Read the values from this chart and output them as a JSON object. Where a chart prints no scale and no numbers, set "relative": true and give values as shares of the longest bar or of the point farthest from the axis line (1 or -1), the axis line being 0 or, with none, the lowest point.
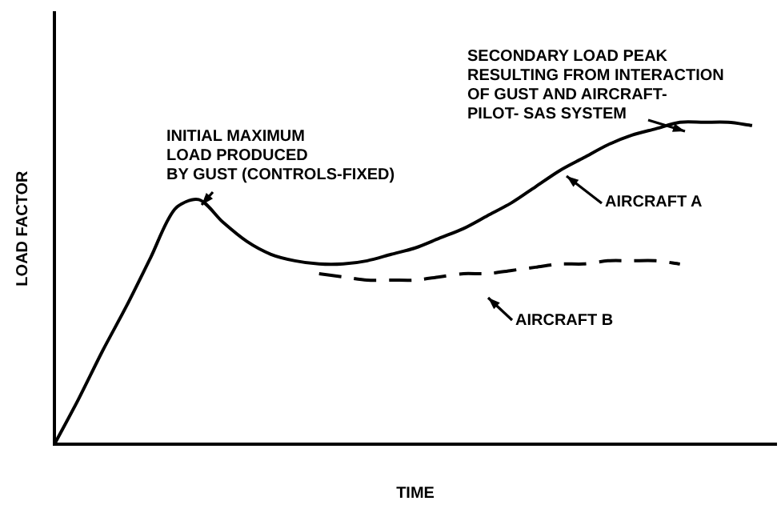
{
  "chart_data": {
    "type": "line",
    "relative": true,
    "xlabel": "TIME",
    "ylabel": "LOAD FACTOR",
    "legend": false,
    "grid": false,
    "marker": "none",
    "categories": [
      null,
      null,
      null,
      null,
      null,
      null,
      null,
      null,
      null,
      null,
      null,
      null,
      null,
      null,
      null,
      null,
      null,
      null,
      null,
      null,
      null,
      null,
      null,
      null,
      null,
      null,
      null,
      null,
      null,
      null,
      null
    ],
    "series": [
      {
        "name": "AIRCRAFT A",
        "color": "#000000",
        "line_style": "solid",
        "values": [
          0,
          0.14,
          0.29,
          0.43,
          0.58,
          0.73,
          0.76,
          0.69,
          0.63,
          0.59,
          0.57,
          0.56,
          0.56,
          0.57,
          0.59,
          0.61,
          0.64,
          0.67,
          0.71,
          0.75,
          0.8,
          0.85,
          0.89,
          0.93,
          0.96,
          0.98,
          1,
          1,
          1,
          0.99,
          null
        ]
      },
      {
        "name": "AIRCRAFT B",
        "color": "#000000",
        "line_style": "dashed",
        "values": [
          null,
          null,
          null,
          null,
          null,
          null,
          null,
          null,
          null,
          null,
          null,
          0.53,
          0.52,
          0.51,
          0.51,
          0.51,
          0.52,
          0.53,
          0.53,
          0.54,
          0.55,
          0.56,
          0.56,
          0.57,
          0.57,
          0.57,
          0.56,
          null,
          null,
          null,
          null
        ]
      }
    ],
    "annotations": [
      "INITIAL MAXIMUM\nLOAD PRODUCED\nBY GUST (CONTROLS-FIXED)",
      "SECONDARY LOAD PEAK\nRESULTING FROM INTERACTION\nOF GUST AND AIRCRAFT-\nPILOT- SAS SYSTEM"
    ]
  }
}
